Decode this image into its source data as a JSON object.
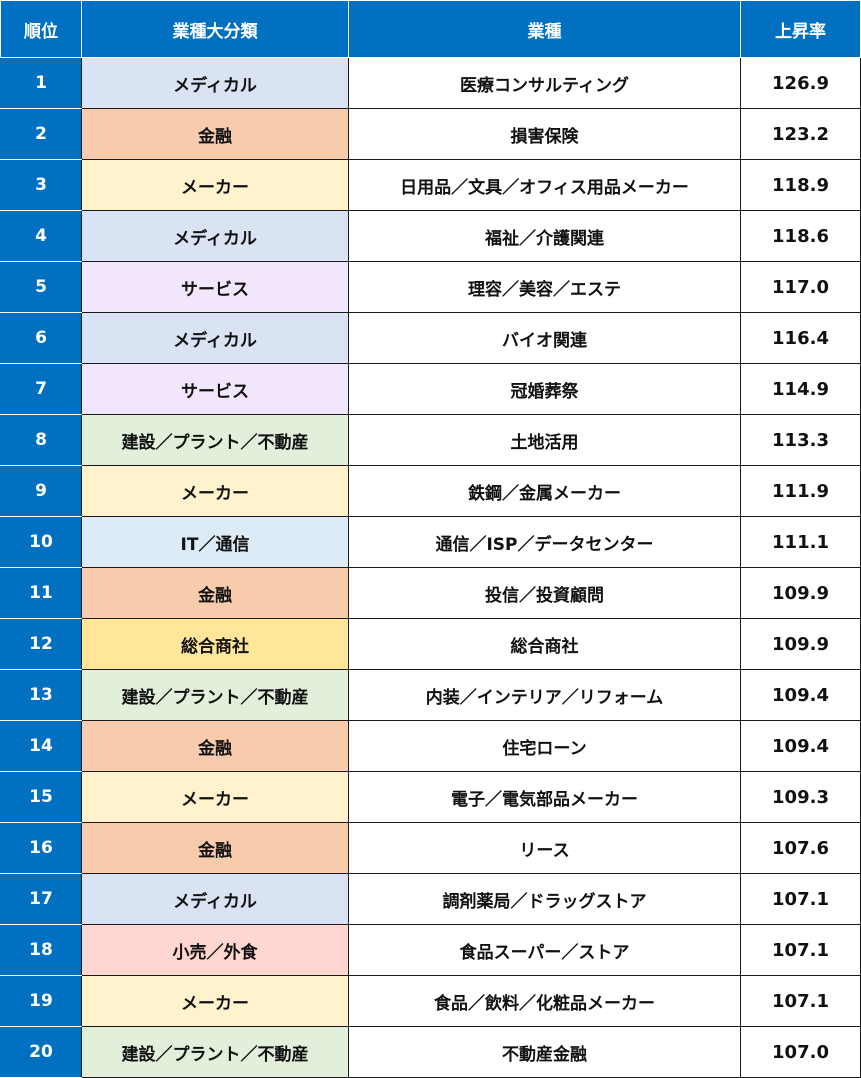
{
  "header": {
    "rank": "順位",
    "category": "業種大分類",
    "industry": "業種",
    "rate": "上昇率"
  },
  "category_colors": {
    "メディカル": "#dae3f3",
    "金融": "#f8cbad",
    "メーカー": "#fff2cc",
    "サービス": "#f2e6fd",
    "建設／プラント／不動産": "#e2efda",
    "IT／通信": "#ddebf7",
    "総合商社": "#ffe699",
    "小売／外食": "#ffd7d0"
  },
  "rows": [
    {
      "rank": "1",
      "category": "メディカル",
      "industry": "医療コンサルティング",
      "rate": "126.9"
    },
    {
      "rank": "2",
      "category": "金融",
      "industry": "損害保険",
      "rate": "123.2"
    },
    {
      "rank": "3",
      "category": "メーカー",
      "industry": "日用品／文具／オフィス用品メーカー",
      "rate": "118.9"
    },
    {
      "rank": "4",
      "category": "メディカル",
      "industry": "福祉／介護関連",
      "rate": "118.6"
    },
    {
      "rank": "5",
      "category": "サービス",
      "industry": "理容／美容／エステ",
      "rate": "117.0"
    },
    {
      "rank": "6",
      "category": "メディカル",
      "industry": "バイオ関連",
      "rate": "116.4"
    },
    {
      "rank": "7",
      "category": "サービス",
      "industry": "冠婚葬祭",
      "rate": "114.9"
    },
    {
      "rank": "8",
      "category": "建設／プラント／不動産",
      "industry": "土地活用",
      "rate": "113.3"
    },
    {
      "rank": "9",
      "category": "メーカー",
      "industry": "鉄鋼／金属メーカー",
      "rate": "111.9"
    },
    {
      "rank": "10",
      "category": "IT／通信",
      "industry": "通信／ISP／データセンター",
      "rate": "111.1"
    },
    {
      "rank": "11",
      "category": "金融",
      "industry": "投信／投資顧問",
      "rate": "109.9"
    },
    {
      "rank": "12",
      "category": "総合商社",
      "industry": "総合商社",
      "rate": "109.9"
    },
    {
      "rank": "13",
      "category": "建設／プラント／不動産",
      "industry": "内装／インテリア／リフォーム",
      "rate": "109.4"
    },
    {
      "rank": "14",
      "category": "金融",
      "industry": "住宅ローン",
      "rate": "109.4"
    },
    {
      "rank": "15",
      "category": "メーカー",
      "industry": "電子／電気部品メーカー",
      "rate": "109.3"
    },
    {
      "rank": "16",
      "category": "金融",
      "industry": "リース",
      "rate": "107.6"
    },
    {
      "rank": "17",
      "category": "メディカル",
      "industry": "調剤薬局／ドラッグストア",
      "rate": "107.1"
    },
    {
      "rank": "18",
      "category": "小売／外食",
      "industry": "食品スーパー／ストア",
      "rate": "107.1"
    },
    {
      "rank": "19",
      "category": "メーカー",
      "industry": "食品／飲料／化粧品メーカー",
      "rate": "107.1"
    },
    {
      "rank": "20",
      "category": "建設／プラント／不動産",
      "industry": "不動産金融",
      "rate": "107.0"
    }
  ]
}
